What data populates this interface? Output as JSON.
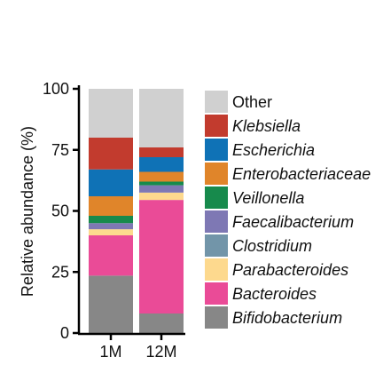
{
  "chart_data": {
    "type": "bar",
    "stacked": true,
    "title": "",
    "xlabel": "",
    "ylabel": "Relative abundance (%)",
    "ylim": [
      0,
      100
    ],
    "yticks": [
      "0",
      "25",
      "50",
      "75",
      "100"
    ],
    "categories": [
      "1M",
      "12M"
    ],
    "legend_position": "right",
    "series": [
      {
        "name": "Bifidobacterium",
        "italic": true,
        "color": "#878787",
        "values": [
          23.5,
          8
        ]
      },
      {
        "name": "Bacteroides",
        "italic": true,
        "color": "#ea4b97",
        "values": [
          16.5,
          46.5
        ]
      },
      {
        "name": "Parabacteroides",
        "italic": true,
        "color": "#fdd98e",
        "values": [
          2.5,
          3
        ]
      },
      {
        "name": "Clostridium",
        "italic": true,
        "color": "#7295a9",
        "values": [
          0,
          0
        ]
      },
      {
        "name": "Faecalibacterium",
        "italic": true,
        "color": "#7e78b4",
        "values": [
          2.5,
          3
        ]
      },
      {
        "name": "Veillonella",
        "italic": true,
        "color": "#178a4c",
        "values": [
          3,
          1.5
        ]
      },
      {
        "name": "Enterobacteriaceae",
        "italic": true,
        "color": "#e0852a",
        "values": [
          8,
          4
        ]
      },
      {
        "name": "Escherichia",
        "italic": true,
        "color": "#0f72b6",
        "values": [
          11,
          6
        ]
      },
      {
        "name": "Klebsiella",
        "italic": true,
        "color": "#c23b2e",
        "values": [
          13,
          4
        ]
      },
      {
        "name": "Other",
        "italic": false,
        "color": "#d0d0d0",
        "values": [
          20,
          24
        ]
      }
    ]
  }
}
